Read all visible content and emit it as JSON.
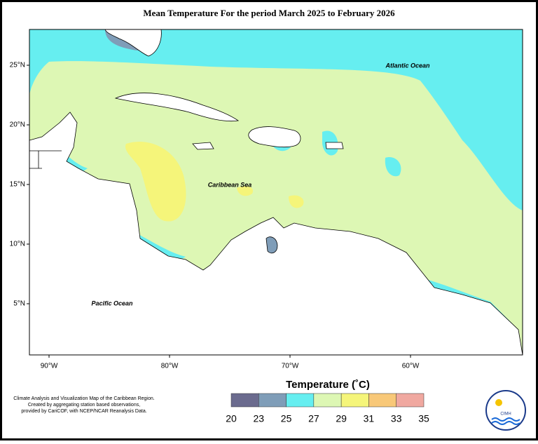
{
  "title": "Mean Temperature For the period March 2025 to February 2026",
  "map": {
    "labels": [
      "Atlantic Ocean",
      "Caribbean Sea",
      "Pacific Ocean"
    ],
    "lat_ticks": [
      "25°N",
      "20°N",
      "15°N",
      "10°N",
      "5°N"
    ],
    "lon_ticks": [
      "90°W",
      "80°W",
      "70°W",
      "60°W"
    ]
  },
  "legend": {
    "title": "Temperature (˚C)",
    "ticks": [
      20,
      23,
      25,
      27,
      29,
      31,
      33,
      35
    ],
    "colors": [
      "#6b6b8e",
      "#7f9db8",
      "#66eef0",
      "#ddf7b4",
      "#f5f57a",
      "#f8c878",
      "#f0a8a0"
    ]
  },
  "credit": [
    "Climate Analysis and Visualization Map of the Caribbean Region.",
    "Created by aggregating station based observations,",
    "provided by CariCOF, with NCEP/NCAR Reanalysis Data."
  ],
  "logo": "CIMH"
}
